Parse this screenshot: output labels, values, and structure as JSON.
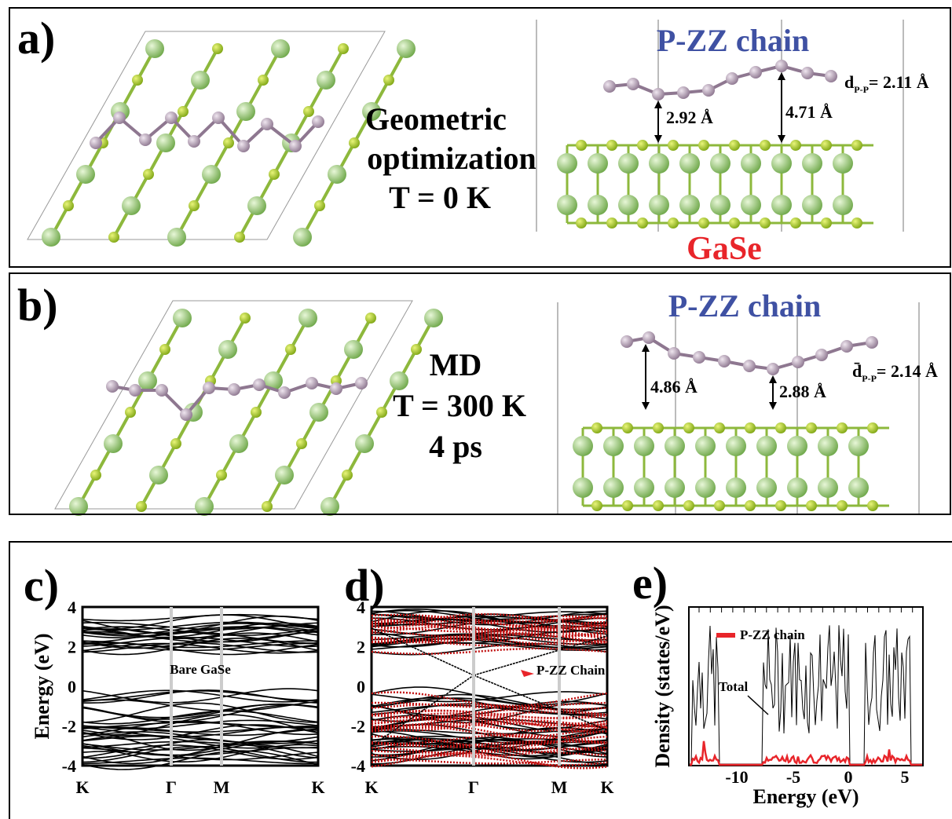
{
  "panels": [
    {
      "label": "a)",
      "title": "P-ZZ chain",
      "caption": [
        "Geometric",
        "optimization",
        "T = 0 K"
      ],
      "distances": [
        "2.92 Å",
        "4.71 Å"
      ],
      "dpp": {
        "symbol": "d",
        "sub": "P-P",
        "value": "= 2.11 Å"
      },
      "substrate": "GaSe"
    },
    {
      "label": "b)",
      "title": "P-ZZ chain",
      "caption": [
        "MD",
        "T = 300 K",
        "4 ps"
      ],
      "distances": [
        "4.86 Å",
        "2.88 Å"
      ],
      "dpp": {
        "symbol": "d̄",
        "sub": "P-P",
        "value": "= 2.14 Å"
      }
    },
    {
      "label": "c)",
      "ylabel": "Energy (eV)",
      "yticks": [
        "4",
        "2",
        "0",
        "-2",
        "-4"
      ],
      "xticks": [
        "K",
        "Γ",
        "M",
        "K"
      ],
      "annotation": "Bare GaSe"
    },
    {
      "label": "d)",
      "yticks": [
        "4",
        "2",
        "0",
        "-2",
        "-4"
      ],
      "xticks": [
        "K",
        "Γ",
        "M",
        "K"
      ],
      "annotation": "P-ZZ Chain"
    },
    {
      "label": "e)",
      "ylabel": "Density (states/eV)",
      "xlabel": "Energy (eV)",
      "xticks": [
        "-10",
        "-5",
        "0",
        "5"
      ],
      "legend": "P-ZZ chain",
      "annotation": "Total"
    }
  ]
}
